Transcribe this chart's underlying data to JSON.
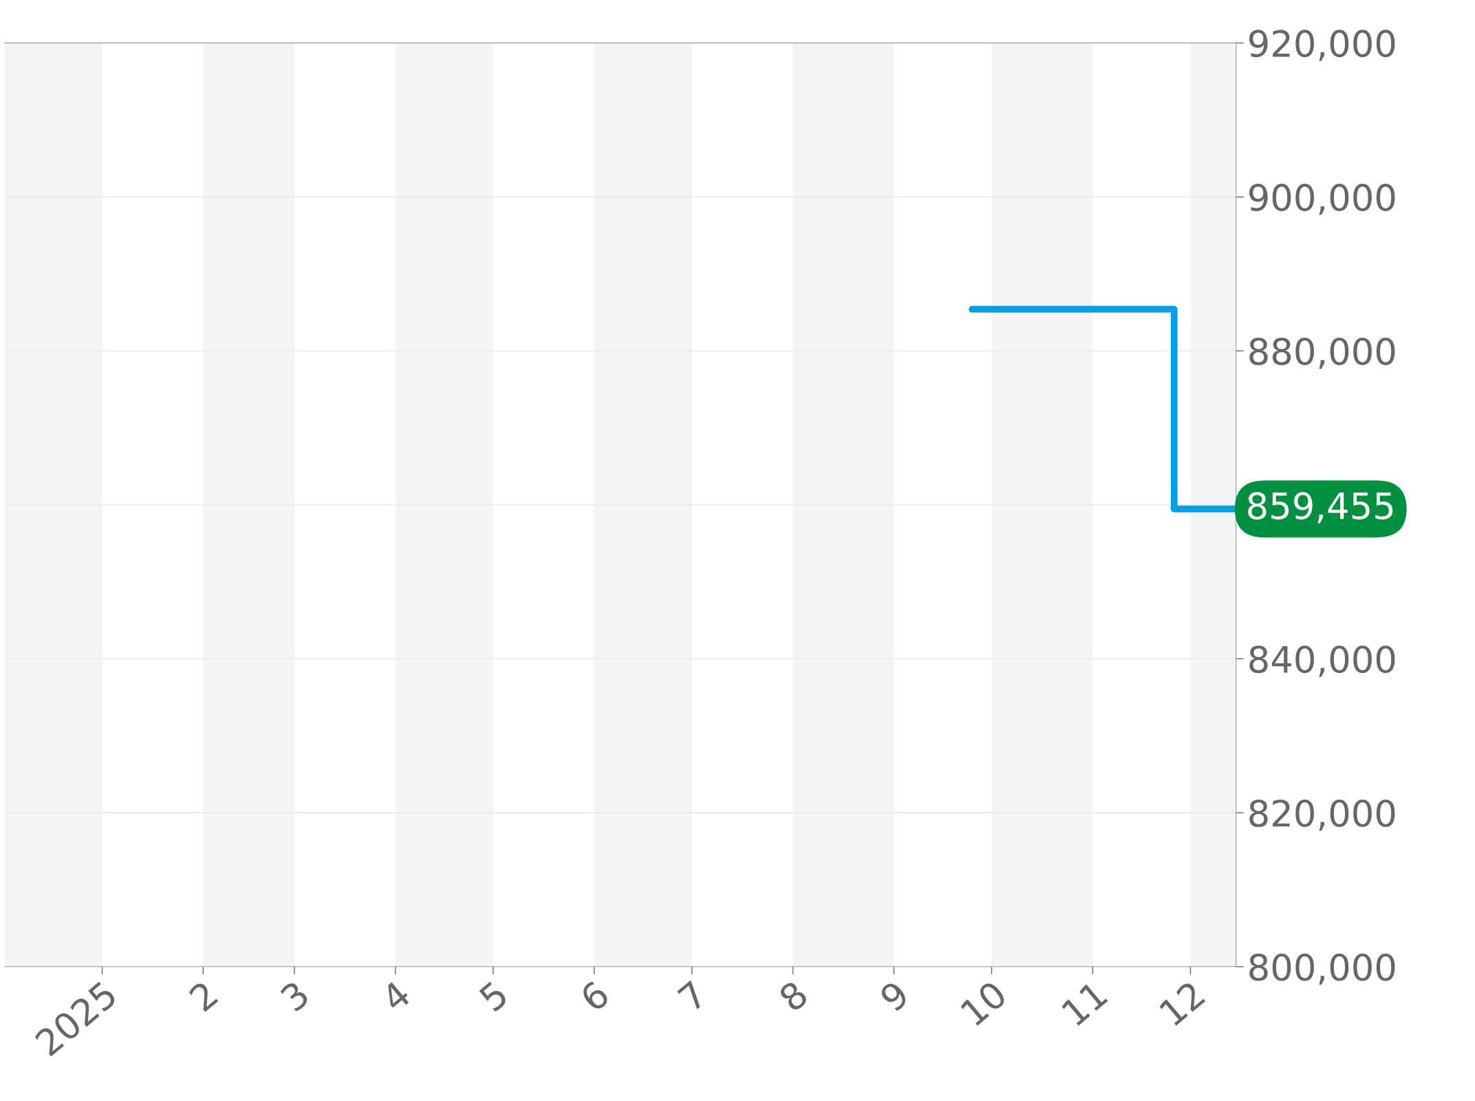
{
  "chart_data": {
    "type": "step",
    "x": [
      "2025-09-25",
      "2025-11-26",
      "2025-12-15"
    ],
    "series": [
      {
        "color": "#00a0e9",
        "values": [
          885400,
          859455,
          859455
        ]
      }
    ],
    "xlim": [
      "2024-12-02",
      "2025-12-15"
    ],
    "xticks": [
      {
        "value": "2025-01-01",
        "label": "2025"
      },
      {
        "value": "2025-02-01",
        "label": "2"
      },
      {
        "value": "2025-03-01",
        "label": "3"
      },
      {
        "value": "2025-04-01",
        "label": "4"
      },
      {
        "value": "2025-05-01",
        "label": "5"
      },
      {
        "value": "2025-06-01",
        "label": "6"
      },
      {
        "value": "2025-07-01",
        "label": "7"
      },
      {
        "value": "2025-08-01",
        "label": "8"
      },
      {
        "value": "2025-09-01",
        "label": "9"
      },
      {
        "value": "2025-10-01",
        "label": "10"
      },
      {
        "value": "2025-11-01",
        "label": "11"
      },
      {
        "value": "2025-12-01",
        "label": "12"
      }
    ],
    "ylim": [
      800000,
      920000
    ],
    "yticks": [
      {
        "value": 800000,
        "label": "800,000"
      },
      {
        "value": 820000,
        "label": "820,000"
      },
      {
        "value": 840000,
        "label": "840,000"
      },
      {
        "value": 860000,
        "label": null
      },
      {
        "value": 880000,
        "label": "880,000"
      },
      {
        "value": 900000,
        "label": "900,000"
      },
      {
        "value": 920000,
        "label": "920,000"
      }
    ],
    "grid": "y",
    "bands": [
      {
        "axis": "x",
        "from": "2024-12-02",
        "to": "2025-01-01",
        "color": "#f4f4f4"
      },
      {
        "axis": "x",
        "from": "2025-02-01",
        "to": "2025-03-01",
        "color": "#f4f4f4"
      },
      {
        "axis": "x",
        "from": "2025-04-01",
        "to": "2025-05-01",
        "color": "#f4f4f4"
      },
      {
        "axis": "x",
        "from": "2025-06-01",
        "to": "2025-07-01",
        "color": "#f4f4f4"
      },
      {
        "axis": "x",
        "from": "2025-08-01",
        "to": "2025-09-01",
        "color": "#f4f4f4"
      },
      {
        "axis": "x",
        "from": "2025-10-01",
        "to": "2025-11-01",
        "color": "#f4f4f4"
      },
      {
        "axis": "x",
        "from": "2025-12-01",
        "to": "2025-12-15",
        "color": "#f4f4f4"
      }
    ],
    "annotations": [
      {
        "text": "859,455",
        "x": "2025-12-15",
        "y": 859455
      }
    ]
  }
}
